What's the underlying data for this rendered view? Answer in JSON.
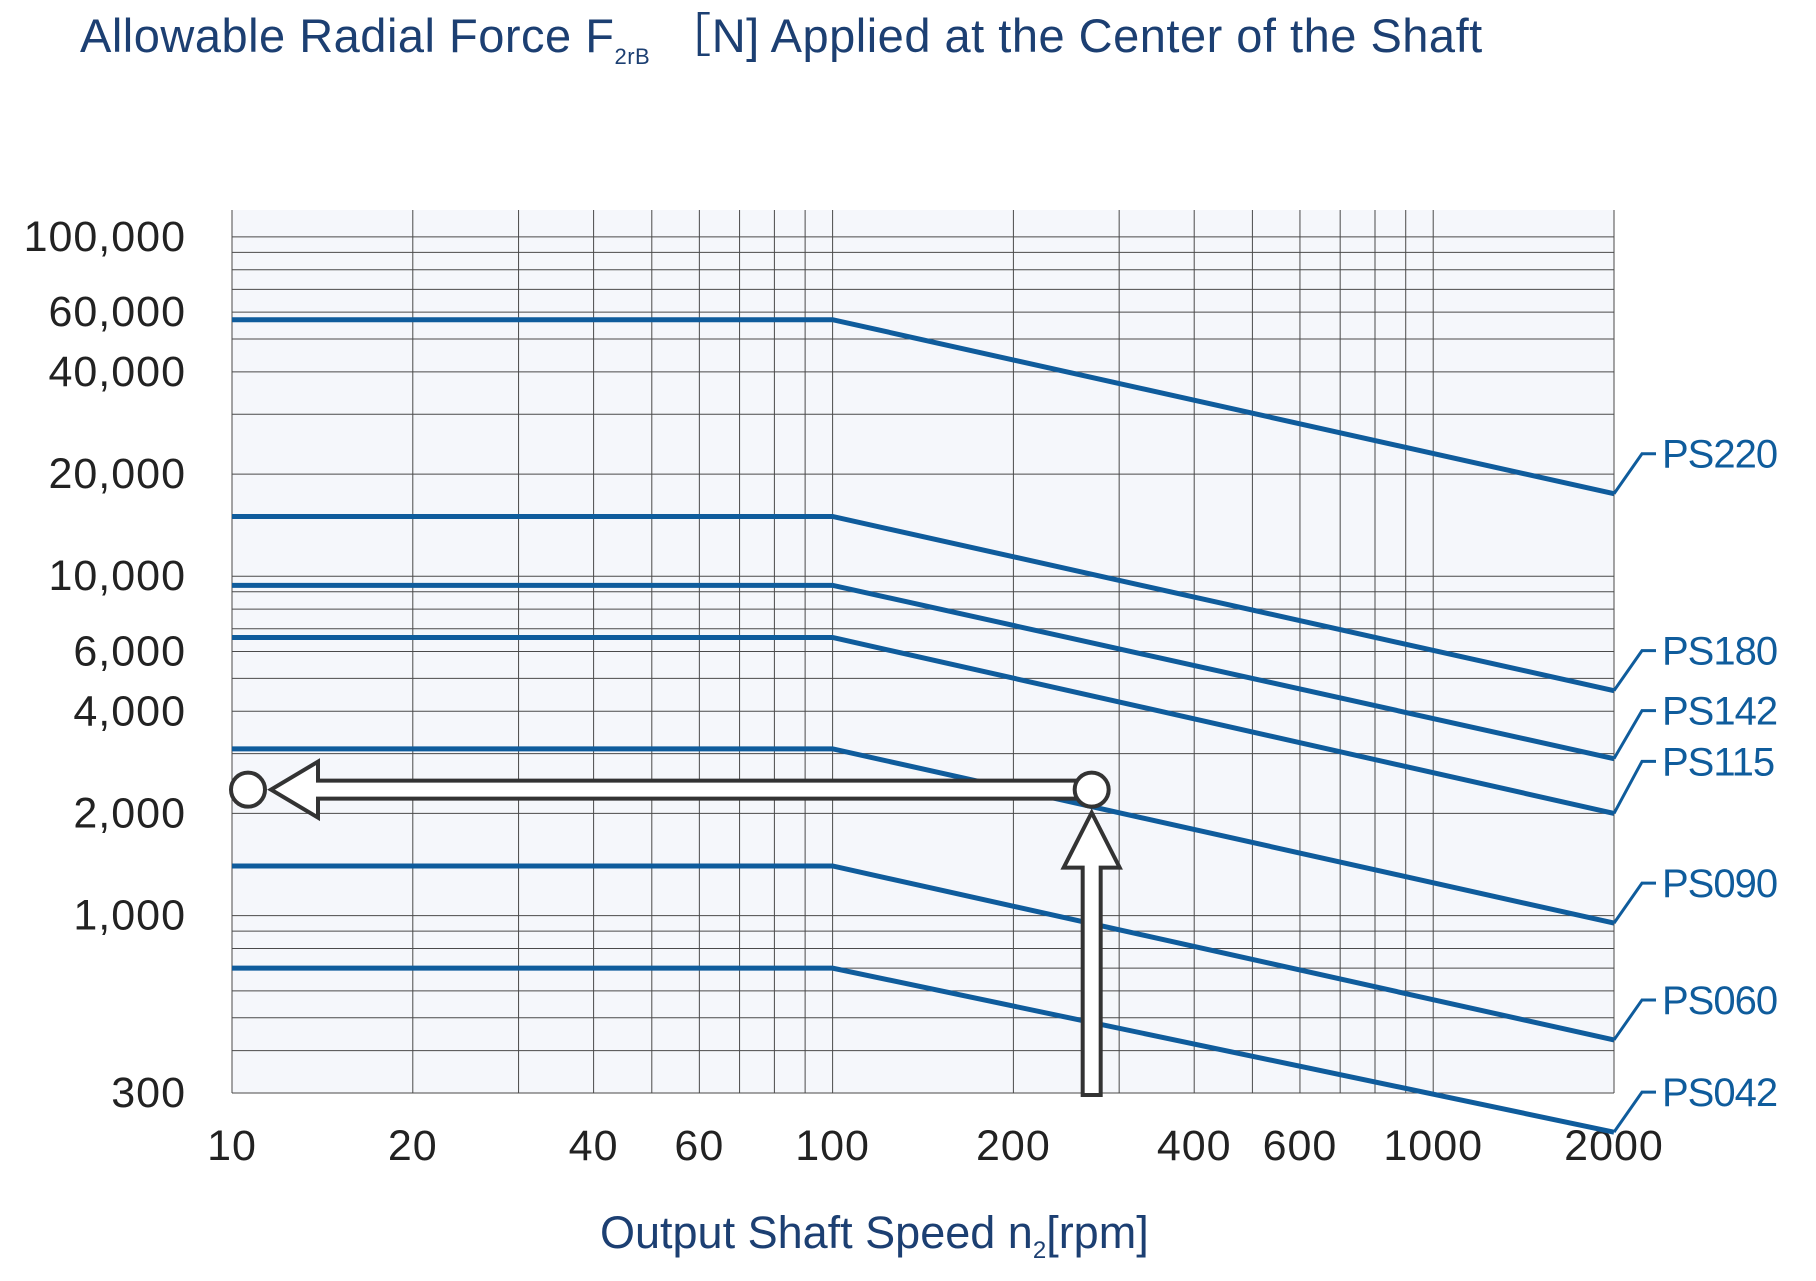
{
  "chart_data": {
    "type": "line",
    "title": "Allowable Radial Force F",
    "title_sub": "2rB",
    "title_rest": "［N] Applied at the Center of the Shaft",
    "xlabel": "Output Shaft Speed n",
    "xlabel_sub": "2",
    "xlabel_rest": "[rpm]",
    "xscale": "log",
    "yscale": "log",
    "xlim": [
      10,
      2000
    ],
    "ylim": [
      300,
      120000
    ],
    "x_ticks": [
      10,
      20,
      40,
      60,
      100,
      200,
      400,
      600,
      1000,
      2000
    ],
    "x_tick_labels": [
      "10",
      "20",
      "40",
      "60",
      "100",
      "200",
      "400",
      "600",
      "1000",
      "2000"
    ],
    "y_ticks": [
      100000,
      60000,
      40000,
      20000,
      10000,
      6000,
      4000,
      2000,
      1000,
      300
    ],
    "y_tick_labels": [
      "100,000",
      "60,000",
      "40,000",
      "20,000",
      "10,000",
      "6,000",
      "4,000",
      "2,000",
      "1,000",
      "300"
    ],
    "grid": true,
    "series": [
      {
        "name": "PS220",
        "x": [
          10,
          100,
          2000
        ],
        "y": [
          57000,
          57000,
          17500
        ]
      },
      {
        "name": "PS180",
        "x": [
          10,
          100,
          2000
        ],
        "y": [
          15000,
          15000,
          4600
        ]
      },
      {
        "name": "PS142",
        "x": [
          10,
          100,
          2000
        ],
        "y": [
          9400,
          9400,
          2900
        ]
      },
      {
        "name": "PS115",
        "x": [
          10,
          100,
          2000
        ],
        "y": [
          6600,
          6600,
          2000
        ]
      },
      {
        "name": "PS090",
        "x": [
          10,
          100,
          2000
        ],
        "y": [
          3100,
          3100,
          950
        ]
      },
      {
        "name": "PS060",
        "x": [
          10,
          100,
          2000
        ],
        "y": [
          1400,
          1400,
          430
        ]
      },
      {
        "name": "PS042",
        "x": [
          10,
          100,
          2000
        ],
        "y": [
          700,
          700,
          230
        ]
      }
    ],
    "annotation": {
      "description": "example read-off: speed to allowable force",
      "speed_rpm": 270,
      "force_N": 2350
    },
    "colors": {
      "series": "#0f5c9c",
      "grid": "#4a4a4a",
      "plot_bg": "#f5f7fb",
      "arrow": "#333333",
      "title": "#1c3f72"
    }
  }
}
